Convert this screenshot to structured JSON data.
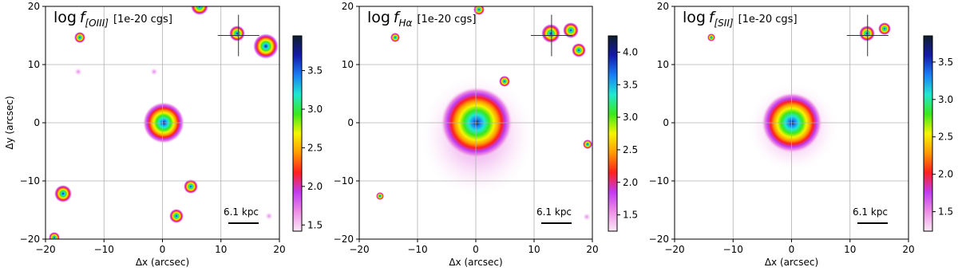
{
  "chart_data": [
    {
      "type": "image",
      "title": {
        "main": "log",
        "symbol": "f",
        "subscript": "[OIII]",
        "unit": "[1e-20 cgs]"
      },
      "xlabel": "Δx (arcsec)",
      "ylabel": "Δy (arcsec)",
      "xlim": [
        -20,
        20
      ],
      "ylim": [
        -20,
        20
      ],
      "xticks": [
        {
          "value": -20,
          "label": "−20"
        },
        {
          "value": -10,
          "label": "−10"
        },
        0,
        10,
        20
      ],
      "yticks": [
        {
          "value": -20,
          "label": "−20"
        },
        {
          "value": -10,
          "label": "−10"
        },
        0,
        10,
        20
      ],
      "grid": true,
      "clim": [
        1.42,
        3.95
      ],
      "cticks": [
        1.5,
        {
          "value": 2,
          "label": "2.0"
        },
        2.5,
        {
          "value": 3,
          "label": "3.0"
        },
        3.5
      ],
      "colormap": [
        "#fbe9f6",
        "#ee8fe6",
        "#c13cf0",
        "#ff1f1f",
        "#ff9a00",
        "#f5f500",
        "#39e81c",
        "#1fe8d2",
        "#1a7df5",
        "#141aa8",
        "#0f1f2a"
      ],
      "scale_label": "6.1 kpc"
    },
    {
      "type": "image",
      "title": {
        "main": "log",
        "symbol": "f",
        "subscript": "Hα",
        "unit": "[1e-20 cgs]"
      },
      "xlabel": "Δx (arcsec)",
      "xlim": [
        -20,
        20
      ],
      "ylim": [
        -20,
        20
      ],
      "xticks": [
        {
          "value": -20,
          "label": "−20"
        },
        {
          "value": -10,
          "label": "−10"
        },
        0,
        10,
        20
      ],
      "yticks": [
        {
          "value": -20,
          "label": "−20"
        },
        {
          "value": -10,
          "label": "−10"
        },
        0,
        10,
        20
      ],
      "grid": true,
      "clim": [
        1.25,
        4.25
      ],
      "cticks": [
        1.5,
        {
          "value": 2,
          "label": "2.0"
        },
        2.5,
        {
          "value": 3,
          "label": "3.0"
        },
        3.5,
        {
          "value": 4,
          "label": "4.0"
        }
      ],
      "colormap": [
        "#fbe9f6",
        "#ee8fe6",
        "#c13cf0",
        "#ff1f1f",
        "#ff9a00",
        "#f5f500",
        "#39e81c",
        "#1fe8d2",
        "#1a7df5",
        "#141aa8",
        "#0f1f2a"
      ],
      "scale_label": "6.1 kpc"
    },
    {
      "type": "image",
      "title": {
        "main": "log",
        "symbol": "f",
        "subscript": "[SII]",
        "unit": "[1e-20 cgs]"
      },
      "xlabel": "Δx (arcsec)",
      "xlim": [
        -20,
        20
      ],
      "ylim": [
        -20,
        20
      ],
      "xticks": [
        {
          "value": -20,
          "label": "−20"
        },
        {
          "value": -10,
          "label": "−10"
        },
        0,
        10,
        20
      ],
      "yticks": [
        {
          "value": -20,
          "label": "−20"
        },
        {
          "value": -10,
          "label": "−10"
        },
        0,
        10,
        20
      ],
      "grid": true,
      "clim": [
        1.24,
        3.85
      ],
      "cticks": [
        1.5,
        {
          "value": 2,
          "label": "2.0"
        },
        2.5,
        {
          "value": 3,
          "label": "3.0"
        },
        3.5
      ],
      "colormap": [
        "#fbe9f6",
        "#ee8fe6",
        "#c13cf0",
        "#ff1f1f",
        "#ff9a00",
        "#f5f500",
        "#39e81c",
        "#1fe8d2",
        "#1a7df5",
        "#141aa8",
        "#0f1f2a"
      ],
      "scale_label": "6.1 kpc"
    }
  ]
}
